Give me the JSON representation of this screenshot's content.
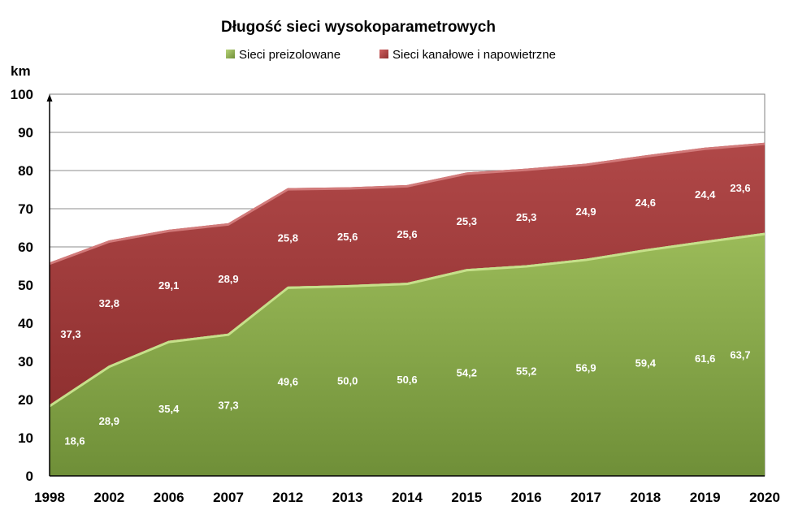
{
  "chart_data": {
    "type": "area",
    "stacked": true,
    "title": "Długość sieci wysokoparametrowych",
    "ylabel": "km",
    "xlabel": "",
    "ylim": [
      0,
      100
    ],
    "ytick_step": 10,
    "grid": true,
    "legend_position": "top",
    "categories": [
      "1998",
      "2002",
      "2006",
      "2007",
      "2012",
      "2013",
      "2014",
      "2015",
      "2016",
      "2017",
      "2018",
      "2019",
      "2020"
    ],
    "series": [
      {
        "name": "Sieci preizolowane",
        "color": "#7f9e44",
        "values": [
          18.6,
          28.9,
          35.4,
          37.3,
          49.6,
          50.0,
          50.6,
          54.2,
          55.2,
          56.9,
          59.4,
          61.6,
          63.7
        ],
        "labels": [
          "18,6",
          "28,9",
          "35,4",
          "37,3",
          "49,6",
          "50,0",
          "50,6",
          "54,2",
          "55,2",
          "56,9",
          "59,4",
          "61,6",
          "63,7"
        ]
      },
      {
        "name": "Sieci kanałowe i napowietrzne",
        "color": "#a03b3b",
        "values": [
          37.3,
          32.8,
          29.1,
          28.9,
          25.8,
          25.6,
          25.6,
          25.3,
          25.3,
          24.9,
          24.6,
          24.4,
          23.6
        ],
        "labels": [
          "37,3",
          "32,8",
          "29,1",
          "28,9",
          "25,8",
          "25,6",
          "25,6",
          "25,3",
          "25,3",
          "24,9",
          "24,6",
          "24,4",
          "23,6"
        ]
      }
    ]
  }
}
